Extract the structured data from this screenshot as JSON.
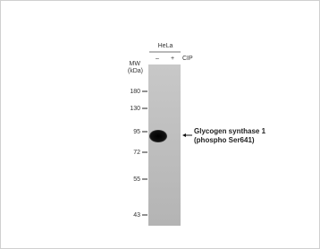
{
  "sample": "HeLa",
  "lanes": [
    "–",
    "+"
  ],
  "treatment": "CIP",
  "mw_label": [
    "MW",
    "(kDa)"
  ],
  "markers": [
    180,
    130,
    95,
    72,
    55,
    43
  ],
  "band_label": [
    "Glycogen synthase 1",
    "(phospho  Ser641)"
  ]
}
